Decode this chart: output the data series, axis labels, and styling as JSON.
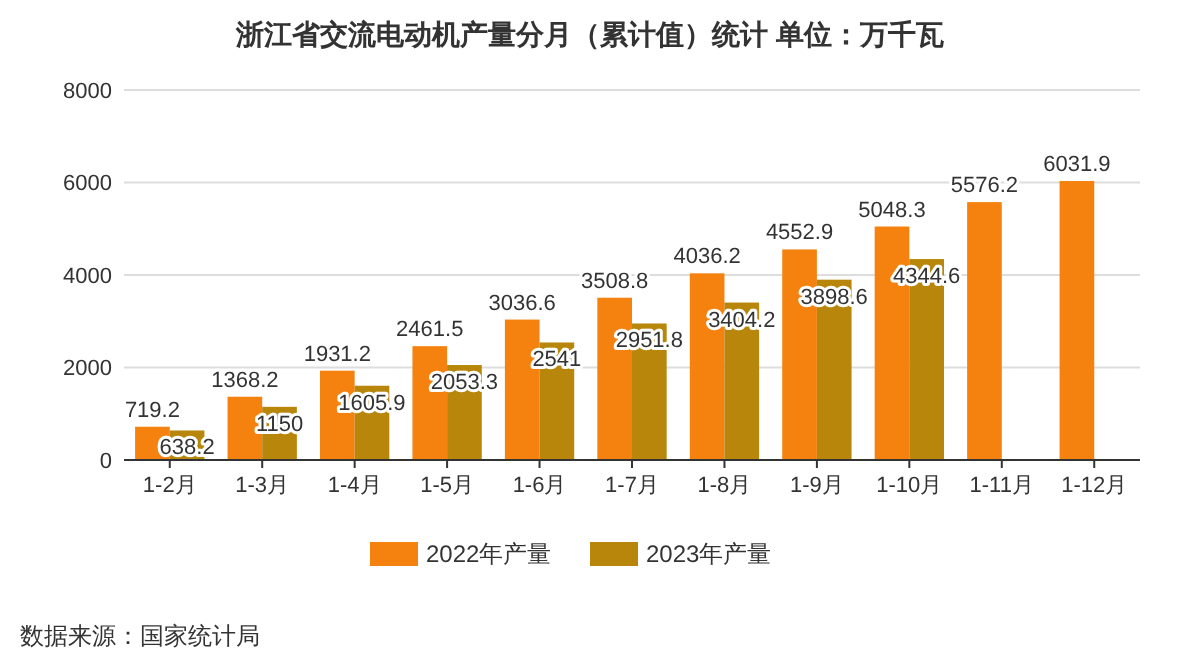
{
  "chart_data": {
    "type": "bar",
    "title": "浙江省交流电动机产量分月（累计值）统计  单位：万千瓦",
    "categories": [
      "1-2月",
      "1-3月",
      "1-4月",
      "1-5月",
      "1-6月",
      "1-7月",
      "1-8月",
      "1-9月",
      "1-10月",
      "1-11月",
      "1-12月"
    ],
    "series": [
      {
        "name": "2022年产量",
        "color": "#f5820f",
        "values": [
          719.2,
          1368.2,
          1931.2,
          2461.5,
          3036.6,
          3508.8,
          4036.2,
          4552.9,
          5048.3,
          5576.2,
          6031.9
        ]
      },
      {
        "name": "2023年产量",
        "color": "#b8860b",
        "values": [
          638.2,
          1150,
          1605.9,
          2053.3,
          2541,
          2951.8,
          3404.2,
          3898.6,
          4344.6,
          null,
          null
        ]
      }
    ],
    "ylim": [
      0,
      8000
    ],
    "yticks": [
      0,
      2000,
      4000,
      6000,
      8000
    ],
    "grid": "y",
    "legend": "bottom",
    "data_labels": true,
    "annotations": [
      "数据来源：国家统计局"
    ]
  }
}
